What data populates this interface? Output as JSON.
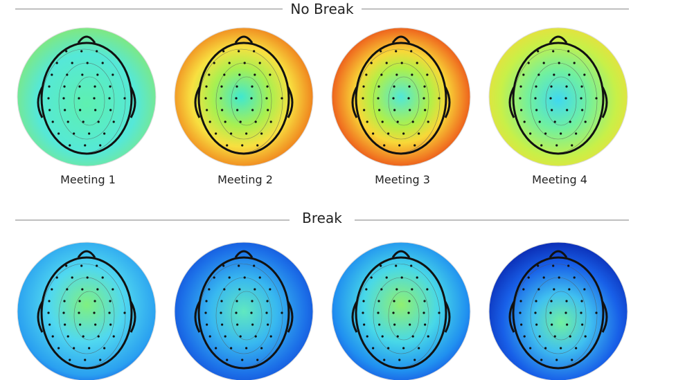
{
  "sections": [
    {
      "title": "No Break",
      "meetings": [
        "Meeting 1",
        "Meeting 2",
        "Meeting 3",
        "Meeting 4"
      ]
    },
    {
      "title": "Break"
    }
  ]
}
